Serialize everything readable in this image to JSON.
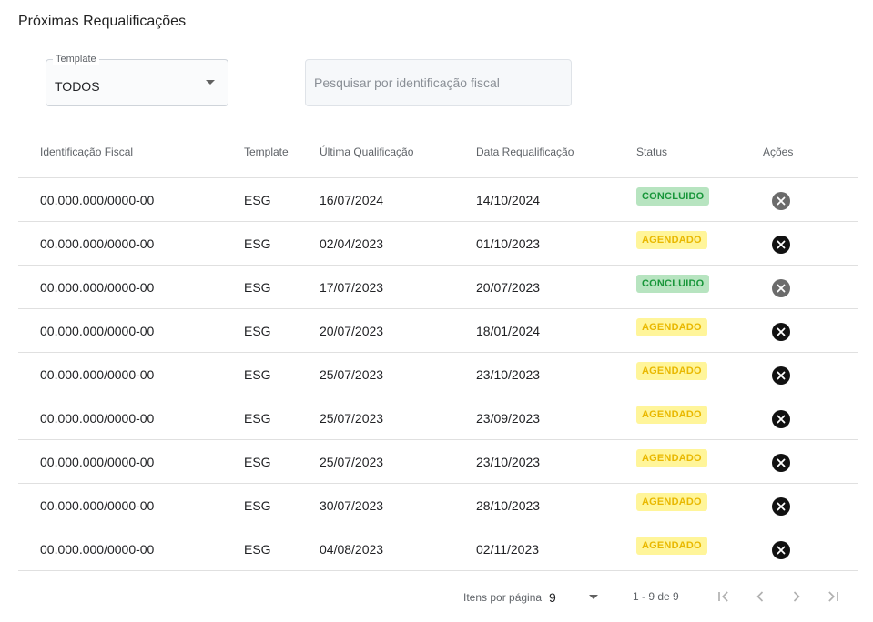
{
  "page": {
    "title": "Próximas Requalificações"
  },
  "filters": {
    "template_label": "Template",
    "template_value": "TODOS",
    "search_placeholder": "Pesquisar por identificação fiscal"
  },
  "table": {
    "columns": [
      "Identificação Fiscal",
      "Template",
      "Última Qualificação",
      "Data Requalificação",
      "Status",
      "Ações"
    ],
    "rows": [
      {
        "fiscal": "00.000.000/0000-00",
        "template": "ESG",
        "ultima": "16/07/2024",
        "data": "14/10/2024",
        "status": "CONCLUIDO",
        "status_type": "concluido",
        "action_enabled": false
      },
      {
        "fiscal": "00.000.000/0000-00",
        "template": "ESG",
        "ultima": "02/04/2023",
        "data": "01/10/2023",
        "status": "AGENDADO",
        "status_type": "agendado",
        "action_enabled": true
      },
      {
        "fiscal": "00.000.000/0000-00",
        "template": "ESG",
        "ultima": "17/07/2023",
        "data": "20/07/2023",
        "status": "CONCLUIDO",
        "status_type": "concluido",
        "action_enabled": false
      },
      {
        "fiscal": "00.000.000/0000-00",
        "template": "ESG",
        "ultima": "20/07/2023",
        "data": "18/01/2024",
        "status": "AGENDADO",
        "status_type": "agendado",
        "action_enabled": true
      },
      {
        "fiscal": "00.000.000/0000-00",
        "template": "ESG",
        "ultima": "25/07/2023",
        "data": "23/10/2023",
        "status": "AGENDADO",
        "status_type": "agendado",
        "action_enabled": true
      },
      {
        "fiscal": "00.000.000/0000-00",
        "template": "ESG",
        "ultima": "25/07/2023",
        "data": "23/09/2023",
        "status": "AGENDADO",
        "status_type": "agendado",
        "action_enabled": true
      },
      {
        "fiscal": "00.000.000/0000-00",
        "template": "ESG",
        "ultima": "25/07/2023",
        "data": "23/10/2023",
        "status": "AGENDADO",
        "status_type": "agendado",
        "action_enabled": true
      },
      {
        "fiscal": "00.000.000/0000-00",
        "template": "ESG",
        "ultima": "30/07/2023",
        "data": "28/10/2023",
        "status": "AGENDADO",
        "status_type": "agendado",
        "action_enabled": true
      },
      {
        "fiscal": "00.000.000/0000-00",
        "template": "ESG",
        "ultima": "04/08/2023",
        "data": "02/11/2023",
        "status": "AGENDADO",
        "status_type": "agendado",
        "action_enabled": true
      }
    ]
  },
  "paginator": {
    "items_per_page_label": "Itens por página",
    "page_size": "9",
    "range_label": "1 - 9 de 9"
  },
  "icons": {
    "action": "cancel-circle-icon",
    "select": "caret-down-icon",
    "first": "first-page-icon",
    "prev": "chevron-left-icon",
    "next": "chevron-right-icon",
    "last": "last-page-icon"
  },
  "colors": {
    "concluido_bg": "#b7e4c0",
    "concluido_text": "#18963a",
    "agendado_bg": "#fff59a",
    "agendado_text": "#e9b800"
  }
}
